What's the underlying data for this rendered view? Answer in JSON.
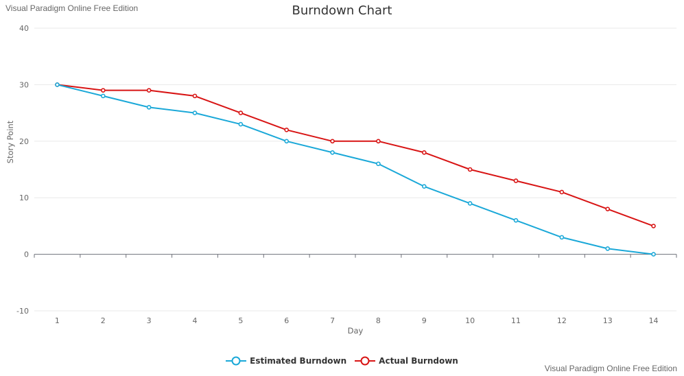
{
  "watermark_top": "Visual Paradigm Online Free Edition",
  "watermark_bottom": "Visual Paradigm Online Free Edition",
  "chart_data": {
    "type": "line",
    "title": "Burndown Chart",
    "xlabel": "Day",
    "ylabel": "Story Point",
    "categories": [
      "1",
      "2",
      "3",
      "4",
      "5",
      "6",
      "7",
      "8",
      "9",
      "10",
      "11",
      "12",
      "13",
      "14"
    ],
    "ylim": [
      -10,
      40
    ],
    "yticks": [
      -10,
      0,
      10,
      20,
      30,
      40
    ],
    "grid": true,
    "legend_position": "bottom-center",
    "series": [
      {
        "name": "Estimated Burndown",
        "color": "#1aa8d8",
        "values": [
          30,
          28,
          26,
          25,
          23,
          20,
          18,
          16,
          12,
          9,
          6,
          3,
          1,
          0
        ]
      },
      {
        "name": "Actual Burndown",
        "color": "#d81414",
        "values": [
          30,
          29,
          29,
          28,
          25,
          22,
          20,
          20,
          18,
          15,
          13,
          11,
          8,
          5
        ]
      }
    ]
  }
}
